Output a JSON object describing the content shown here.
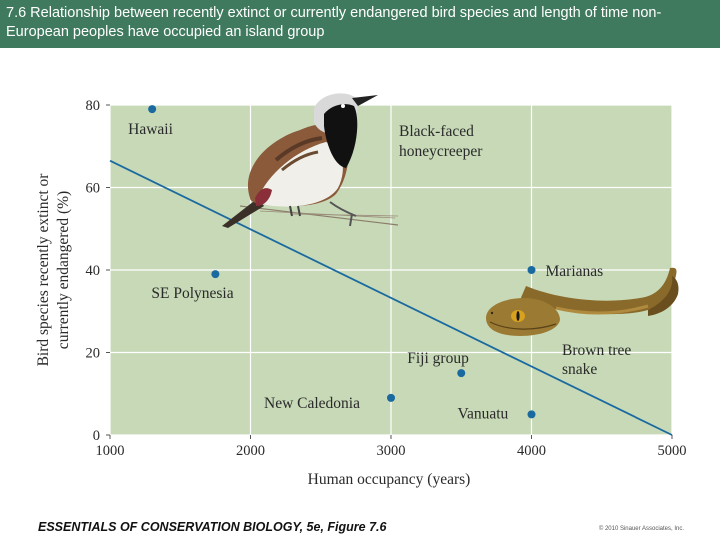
{
  "slide": {
    "title": "7.6 Relationship between recently extinct or currently endangered bird species and length of time non-European peoples have occupied an island group",
    "footer": "ESSENTIALS OF CONSERVATION BIOLOGY, 5e, Figure 7.6",
    "copyright": "© 2010 Sinauer Associates, Inc.",
    "accent_color": "#3f7a5e"
  },
  "chart_data": {
    "type": "scatter",
    "title": "",
    "xlabel": "Human occupancy (years)",
    "ylabel_lines": [
      "Bird species recently extinct or",
      "currently endangered (%)"
    ],
    "xlim": [
      1000,
      5000
    ],
    "ylim": [
      0,
      80
    ],
    "xticks": [
      1000,
      2000,
      3000,
      4000,
      5000
    ],
    "yticks": [
      0,
      20,
      40,
      60,
      80
    ],
    "grid": true,
    "points": [
      {
        "label": "Hawaii",
        "x": 1300,
        "y": 79
      },
      {
        "label": "SE Polynesia",
        "x": 1750,
        "y": 39
      },
      {
        "label": "Marianas",
        "x": 4000,
        "y": 40
      },
      {
        "label": "Fiji group",
        "x": 3500,
        "y": 15
      },
      {
        "label": "New Caledonia",
        "x": 3000,
        "y": 9
      },
      {
        "label": "Vanuatu",
        "x": 4000,
        "y": 5
      }
    ],
    "trendline": {
      "x": [
        1000,
        5000
      ],
      "y": [
        66.5,
        0
      ]
    },
    "annotations": [
      "Black-faced honeycreeper",
      "Brown tree snake"
    ],
    "colors": {
      "plot_bg": "#c7d9b7",
      "grid": "#ffffff",
      "point": "#1a6aa0",
      "trend": "#1a6aa0"
    }
  }
}
